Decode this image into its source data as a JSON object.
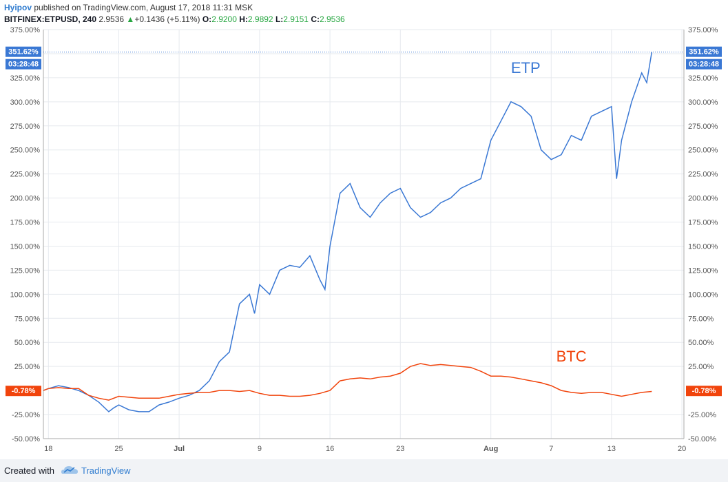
{
  "header": {
    "author": "Hyipov",
    "published": "published on TradingView.com, August 17, 2018 11:31 MSK",
    "symbol": "BITFINEX:ETPUSD, 240",
    "last": "2.9536",
    "change": "+0.1436 (+5.11%)",
    "o_label": "O:",
    "o_value": "2.9200",
    "h_label": "H:",
    "h_value": "2.9892",
    "l_label": "L:",
    "l_value": "2.9151",
    "c_label": "C:",
    "c_value": "2.9536"
  },
  "footer": {
    "created": "Created with",
    "brand": "TradingView"
  },
  "colors": {
    "etp": "#3a78d4",
    "btc": "#f1440c",
    "grid": "#e6e9ee",
    "axis_text": "#555555"
  },
  "chart_data": {
    "type": "line",
    "ylim": [
      -50,
      375
    ],
    "y_ticks": [
      -50,
      -25,
      25,
      50,
      75,
      100,
      125,
      150,
      175,
      200,
      225,
      250,
      275,
      300,
      325,
      350,
      375
    ],
    "y_tick_labels": [
      "-50.00%",
      "-25.00%",
      "25.00%",
      "50.00%",
      "75.00%",
      "100.00%",
      "125.00%",
      "150.00%",
      "175.00%",
      "200.00%",
      "225.00%",
      "250.00%",
      "275.00%",
      "300.00%",
      "325.00%",
      "350.00%",
      "375.00%"
    ],
    "x_ticks": [
      18,
      25,
      31,
      39,
      46,
      53,
      62,
      68,
      74,
      81
    ],
    "x_tick_labels": [
      "18",
      "25",
      "Jul",
      "9",
      "16",
      "23",
      "Aug",
      "7",
      "13",
      "20"
    ],
    "xlim": [
      17.5,
      81.2
    ],
    "annotations": {
      "etp_label": "ETP",
      "btc_label": "BTC"
    },
    "badges": {
      "etp_value": "351.62%",
      "etp_time": "03:28:48",
      "btc_value": "-0.78%"
    },
    "etp_last": 351.62,
    "btc_last": -0.78,
    "series": [
      {
        "name": "ETP",
        "x": [
          17.5,
          18,
          19,
          20,
          21,
          22,
          23,
          24,
          24.5,
          25,
          26,
          27,
          28,
          29,
          30,
          31,
          32,
          33,
          34,
          35,
          36,
          37,
          38,
          38.5,
          39,
          40,
          41,
          42,
          43,
          44,
          45,
          45.5,
          46,
          47,
          48,
          49,
          50,
          51,
          52,
          53,
          54,
          55,
          56,
          57,
          58,
          59,
          60,
          61,
          62,
          63,
          64,
          65,
          66,
          67,
          68,
          69,
          70,
          71,
          72,
          73,
          74,
          74.5,
          75,
          76,
          77,
          77.5,
          78
        ],
        "y": [
          0,
          2,
          5,
          3,
          0,
          -5,
          -12,
          -22,
          -18,
          -15,
          -20,
          -22,
          -22,
          -15,
          -12,
          -8,
          -5,
          0,
          10,
          30,
          40,
          90,
          100,
          80,
          110,
          100,
          125,
          130,
          128,
          140,
          115,
          105,
          150,
          205,
          215,
          190,
          180,
          195,
          205,
          210,
          190,
          180,
          185,
          195,
          200,
          210,
          215,
          220,
          260,
          280,
          300,
          295,
          285,
          250,
          240,
          245,
          265,
          260,
          285,
          290,
          295,
          220,
          260,
          300,
          330,
          320,
          351.62
        ]
      },
      {
        "name": "BTC",
        "x": [
          17.5,
          18,
          19,
          20,
          21,
          22,
          23,
          24,
          25,
          26,
          27,
          28,
          29,
          30,
          31,
          32,
          33,
          34,
          35,
          36,
          37,
          38,
          39,
          40,
          41,
          42,
          43,
          44,
          45,
          46,
          47,
          48,
          49,
          50,
          51,
          52,
          53,
          54,
          55,
          56,
          57,
          58,
          59,
          60,
          61,
          62,
          63,
          64,
          65,
          66,
          67,
          68,
          69,
          70,
          71,
          72,
          73,
          74,
          75,
          76,
          77,
          78
        ],
        "y": [
          0,
          2,
          3,
          2,
          2,
          -5,
          -8,
          -10,
          -6,
          -7,
          -8,
          -8,
          -8,
          -6,
          -4,
          -3,
          -2,
          -2,
          0,
          0,
          -1,
          0,
          -3,
          -5,
          -5,
          -6,
          -6,
          -5,
          -3,
          0,
          10,
          12,
          13,
          12,
          14,
          15,
          18,
          25,
          28,
          26,
          27,
          26,
          25,
          24,
          20,
          15,
          15,
          14,
          12,
          10,
          8,
          5,
          0,
          -2,
          -3,
          -2,
          -2,
          -4,
          -6,
          -4,
          -2,
          -1
        ]
      }
    ]
  }
}
